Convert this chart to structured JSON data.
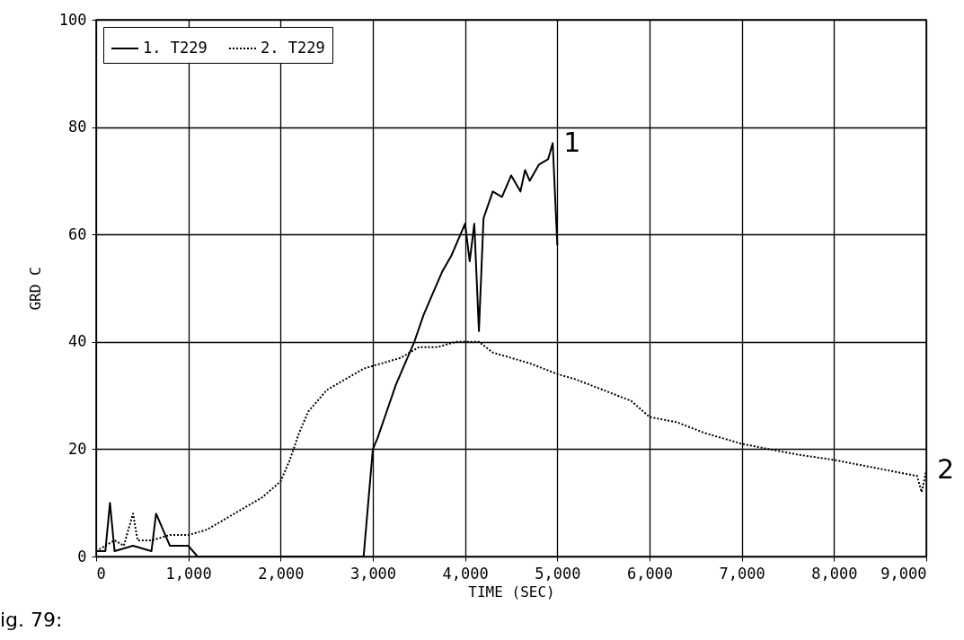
{
  "chart_data": {
    "type": "line",
    "xlabel": "TIME (SEC)",
    "ylabel": "GRD C",
    "xlim": [
      0,
      9000
    ],
    "ylim": [
      0,
      100
    ],
    "xticks": [
      0,
      {
        "value": 1000,
        "label": "1,000"
      },
      {
        "value": 2000,
        "label": "2,000"
      },
      {
        "value": 3000,
        "label": "3,000"
      },
      {
        "value": 4000,
        "label": "4,000"
      },
      {
        "value": 5000,
        "label": "5,000"
      },
      {
        "value": 6000,
        "label": "6,000"
      },
      {
        "value": 7000,
        "label": "7,000"
      },
      {
        "value": 8000,
        "label": "8,000"
      },
      {
        "value": 9000,
        "label": "9,000"
      }
    ],
    "yticks": [
      0,
      20,
      40,
      60,
      80,
      100
    ],
    "grid": true,
    "legend": "top left",
    "marker": "none",
    "series": [
      {
        "name": "1. T229",
        "color": "#000000",
        "line_style": "solid",
        "x": [
          0,
          100,
          150,
          200,
          400,
          600,
          650,
          800,
          1000,
          1100,
          1500,
          2000,
          2500,
          2700,
          2900,
          2950,
          3000,
          3050,
          3150,
          3250,
          3350,
          3450,
          3550,
          3650,
          3750,
          3850,
          3950,
          4000,
          4050,
          4100,
          4150,
          4200,
          4300,
          4400,
          4500,
          4600,
          4650,
          4700,
          4800,
          4900,
          4950,
          5000
        ],
        "values": [
          1,
          1,
          10,
          1,
          2,
          1,
          8,
          2,
          2,
          0,
          0,
          0,
          0,
          0,
          0,
          10,
          20,
          22,
          27,
          32,
          36,
          40,
          45,
          49,
          53,
          56,
          60,
          62,
          55,
          62,
          42,
          63,
          68,
          67,
          71,
          68,
          72,
          70,
          73,
          74,
          77,
          58
        ]
      },
      {
        "name": "2. T229",
        "color": "#000000",
        "line_style": "dotted",
        "x": [
          0,
          100,
          200,
          300,
          400,
          450,
          600,
          800,
          1000,
          1200,
          1400,
          1600,
          1800,
          2000,
          2100,
          2200,
          2300,
          2400,
          2500,
          2700,
          2900,
          3100,
          3300,
          3500,
          3700,
          3900,
          4000,
          4150,
          4300,
          4500,
          4700,
          5000,
          5200,
          5500,
          5800,
          6000,
          6300,
          6600,
          7000,
          7300,
          7600,
          8000,
          8300,
          8600,
          8900,
          8950,
          9000
        ],
        "values": [
          1,
          2,
          3,
          2,
          8,
          3,
          3,
          4,
          4,
          5,
          7,
          9,
          11,
          14,
          18,
          23,
          27,
          29,
          31,
          33,
          35,
          36,
          37,
          39,
          39,
          40,
          40,
          40,
          38,
          37,
          36,
          34,
          33,
          31,
          29,
          26,
          25,
          23,
          21,
          20,
          19,
          18,
          17,
          16,
          15,
          12,
          16
        ]
      }
    ],
    "annotations": [
      {
        "text": "1",
        "x": 4950,
        "y": 77
      },
      {
        "text": "2",
        "x": 9000,
        "y": 16
      },
      "ig. 79:"
    ]
  }
}
